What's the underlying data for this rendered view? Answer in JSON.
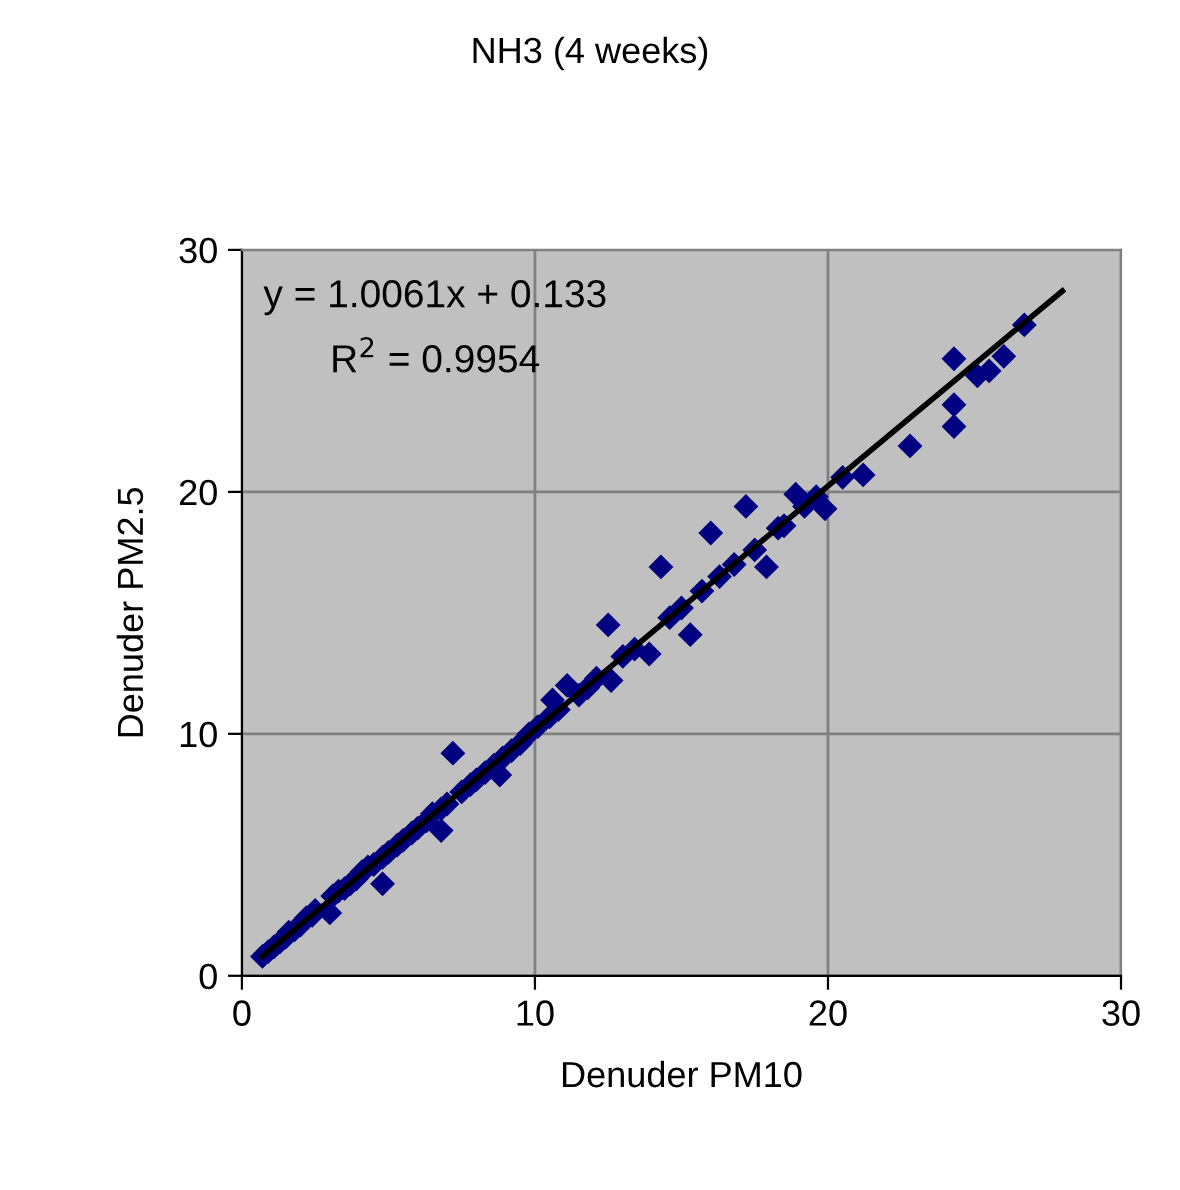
{
  "chart_data": {
    "type": "scatter",
    "title": "NH3 (4 weeks)",
    "xlabel": "Denuder PM10",
    "ylabel": "Denuder PM2.5",
    "xlim": [
      0,
      30
    ],
    "ylim": [
      0,
      30
    ],
    "xticks": [
      0,
      10,
      20,
      30
    ],
    "yticks": [
      0,
      10,
      20,
      30
    ],
    "grid": true,
    "legend": false,
    "annotations": [
      "y = 1.0061x + 0.133",
      "R$^{2}$ = 0.9954"
    ],
    "series": [
      {
        "marker": "diamond",
        "color": "#000080",
        "x": [
          0.7,
          0.9,
          1.1,
          1.3,
          1.5,
          1.6,
          1.8,
          2.0,
          2.2,
          2.4,
          2.5,
          3.1,
          3.3,
          3.5,
          3.7,
          3.9,
          4.1,
          4.3,
          4.5,
          4.8,
          5.0,
          5.3,
          5.5,
          5.8,
          6.0,
          6.3,
          6.5,
          6.8,
          7.0,
          7.2,
          7.5,
          7.8,
          8.0,
          8.3,
          8.6,
          8.9,
          9.2,
          9.5,
          9.8,
          10.1,
          10.5,
          10.8,
          11.1,
          11.5,
          11.8,
          12.1,
          12.5,
          12.6,
          13.0,
          13.4,
          13.9,
          14.3,
          14.6,
          15.0,
          15.3,
          15.7,
          16.0,
          16.3,
          16.8,
          17.2,
          17.5,
          17.9,
          18.3,
          18.5,
          18.9,
          19.2,
          19.6,
          19.9,
          20.5,
          21.2,
          22.8,
          24.3,
          24.3,
          24.3,
          25.1,
          25.5,
          26.0,
          26.7,
          3.0,
          4.8,
          6.8,
          8.8,
          10.6
        ],
        "values": [
          0.8,
          1.0,
          1.2,
          1.4,
          1.6,
          1.8,
          1.9,
          2.1,
          2.4,
          2.5,
          2.7,
          3.3,
          3.5,
          3.6,
          3.8,
          4.0,
          4.3,
          4.5,
          4.6,
          4.9,
          5.1,
          5.4,
          5.6,
          5.9,
          6.1,
          6.4,
          6.7,
          6.9,
          7.1,
          9.2,
          7.6,
          7.9,
          8.1,
          8.4,
          8.7,
          9.0,
          9.3,
          9.6,
          10.0,
          10.3,
          10.7,
          11.0,
          12.0,
          11.6,
          11.9,
          12.3,
          14.5,
          12.2,
          13.2,
          13.5,
          13.3,
          16.9,
          14.8,
          15.2,
          14.1,
          15.9,
          18.3,
          16.5,
          17.0,
          19.4,
          17.6,
          16.9,
          18.5,
          18.6,
          19.9,
          19.4,
          19.8,
          19.3,
          20.6,
          20.7,
          21.9,
          25.5,
          23.6,
          22.7,
          24.8,
          25.0,
          25.6,
          26.9,
          2.6,
          3.8,
          6.0,
          8.3,
          11.4
        ]
      },
      {
        "type": "line",
        "color": "#000000",
        "x": [
          0.7,
          28.0
        ],
        "values": [
          0.8,
          28.3
        ]
      }
    ]
  }
}
